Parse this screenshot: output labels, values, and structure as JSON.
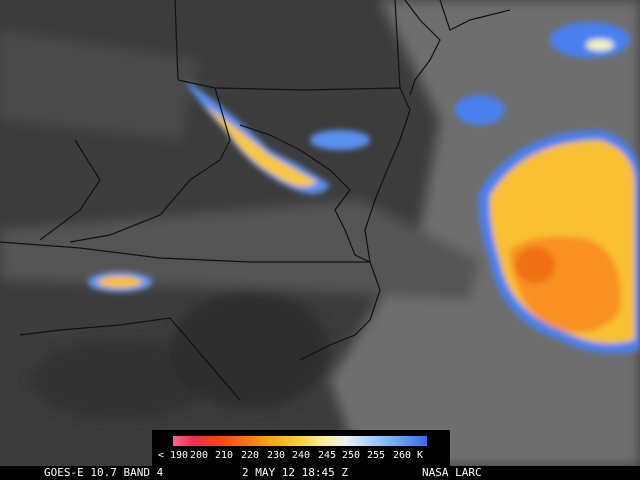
{
  "legend": {
    "labels": [
      "< 190",
      "200",
      "210",
      "220",
      "230",
      "240",
      "245",
      "250",
      "255",
      "260 K"
    ]
  },
  "footer": {
    "product": "GOES-E 10.7 BAND 4",
    "time": "2 MAY 12 18:45 Z",
    "source": "NASA LARC"
  }
}
